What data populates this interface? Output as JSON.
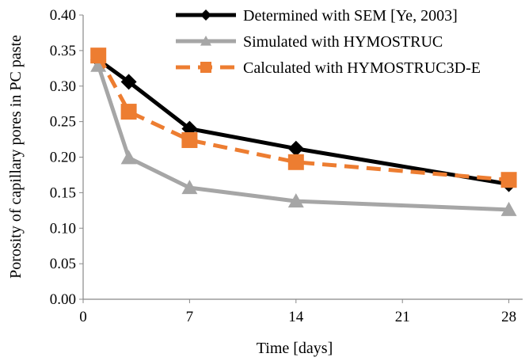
{
  "chart_data": {
    "type": "line",
    "xlabel": "Time [days]",
    "ylabel": "Porosity of capillary pores in PC paste",
    "xlim": [
      0,
      30
    ],
    "ylim": [
      0,
      0.4
    ],
    "xticks": [
      0,
      7,
      14,
      21,
      28
    ],
    "xtick_labels": [
      "0",
      "7",
      "14",
      "21",
      "28"
    ],
    "yticks": [
      0,
      0.05,
      0.1,
      0.15,
      0.2,
      0.25,
      0.3,
      0.35,
      0.4
    ],
    "ytick_labels": [
      "0.00",
      "0.05",
      "0.10",
      "0.15",
      "0.20",
      "0.25",
      "0.30",
      "0.35",
      "0.40"
    ],
    "grid": false,
    "legend_position": "top-right",
    "series": [
      {
        "name": "Determined with SEM [Ye, 2003]",
        "color": "#000000",
        "marker": "diamond",
        "dash": "solid",
        "x": [
          1,
          3,
          7,
          14,
          28
        ],
        "y": [
          0.337,
          0.306,
          0.24,
          0.212,
          0.162
        ]
      },
      {
        "name": "Simulated with HYMOSTRUC",
        "color": "#a6a6a6",
        "marker": "triangle",
        "dash": "solid",
        "x": [
          1,
          3,
          7,
          14,
          28
        ],
        "y": [
          0.329,
          0.199,
          0.157,
          0.138,
          0.126
        ]
      },
      {
        "name": "Calculated with HYMOSTRUC3D-E",
        "color": "#ed7d31",
        "marker": "square",
        "dash": "dashed",
        "x": [
          1,
          3,
          7,
          14,
          28
        ],
        "y": [
          0.343,
          0.264,
          0.224,
          0.193,
          0.168
        ]
      }
    ]
  }
}
